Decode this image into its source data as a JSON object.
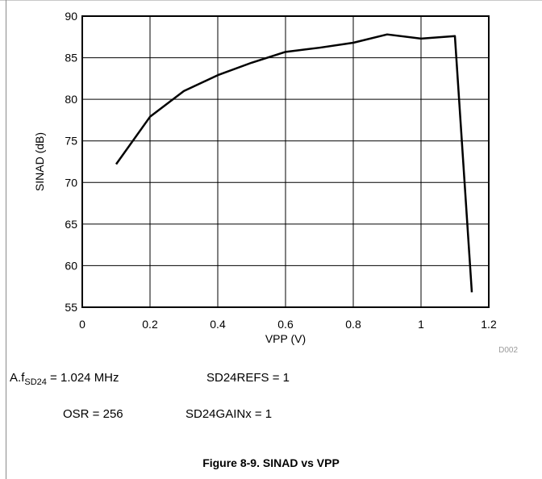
{
  "chart_data": {
    "type": "line",
    "xlabel": "VPP (V)",
    "ylabel": "SINAD (dB)",
    "xlim": [
      0,
      1.2
    ],
    "ylim": [
      55,
      90
    ],
    "xticks": [
      "0",
      "0.2",
      "0.4",
      "0.6",
      "0.8",
      "1",
      "1.2"
    ],
    "yticks": [
      "55",
      "60",
      "65",
      "70",
      "75",
      "80",
      "85",
      "90"
    ],
    "grid": true,
    "series": [
      {
        "x": [
          0.1,
          0.2,
          0.3,
          0.4,
          0.5,
          0.6,
          0.7,
          0.8,
          0.9,
          1.0,
          1.1,
          1.15
        ],
        "y": [
          72.2,
          77.9,
          81.0,
          82.9,
          84.4,
          85.7,
          86.2,
          86.8,
          87.8,
          87.3,
          87.6,
          56.8
        ]
      }
    ],
    "code": "D002"
  },
  "notes": {
    "marker": "A.",
    "fsd_label": "f",
    "fsd_sub": "SD24",
    "fsd_value": " = 1.024 MHz",
    "refs": "SD24REFS = 1",
    "osr": "OSR = 256",
    "gain": "SD24GAINx = 1"
  },
  "caption": "Figure 8-9. SINAD vs VPP"
}
